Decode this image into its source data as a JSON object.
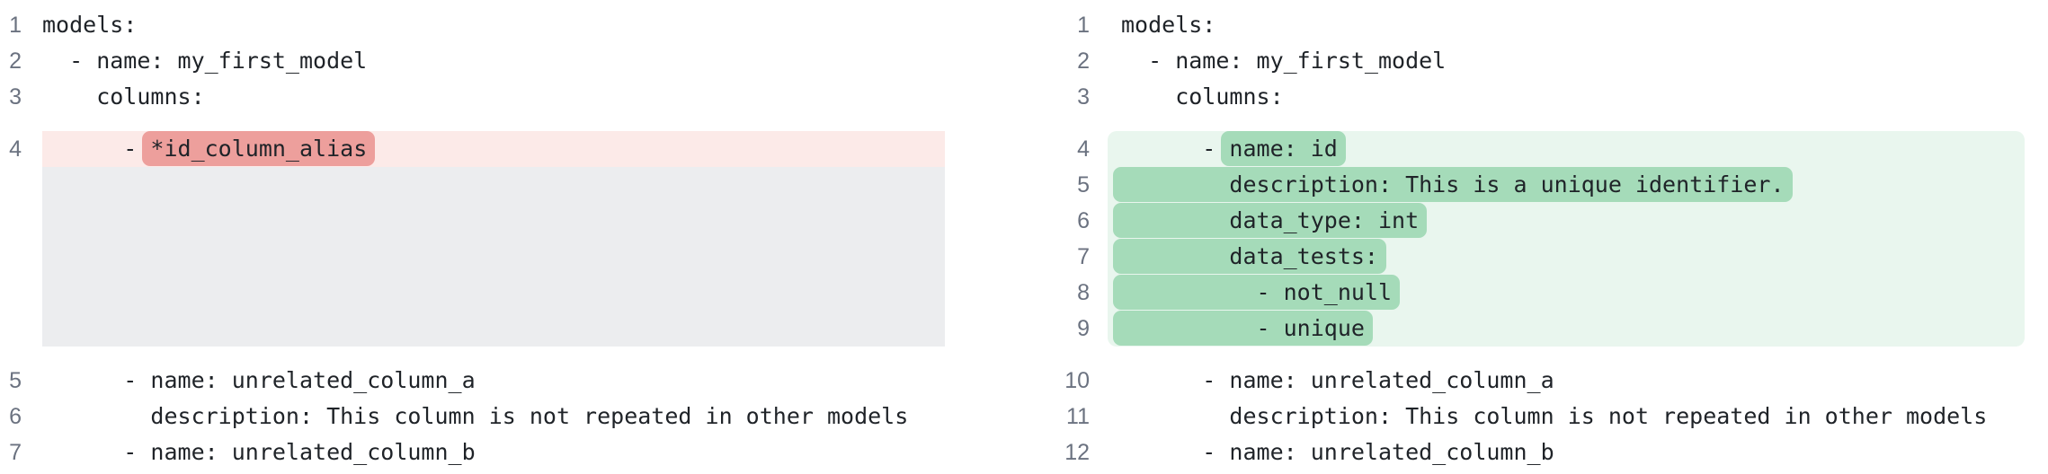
{
  "view": {
    "kind": "side-by-side-code-diff",
    "language": "yaml"
  },
  "colors": {
    "removed_line_bg": "#fceae8",
    "removed_token_bg": "#ed9f9c",
    "added_block_bg": "#e9f6ee",
    "added_token_bg": "#a5dbb9",
    "alignment_spacer_bg": "#ecedef",
    "gutter_text": "#6b7280",
    "code_text": "#1f2328",
    "background": "#ffffff"
  },
  "left": {
    "lines": [
      {
        "num": "1",
        "pre": "models:"
      },
      {
        "num": "2",
        "pre": "  - name: my_first_model"
      },
      {
        "num": "3",
        "pre": "    columns:"
      },
      {
        "num": "4",
        "pre": "      - ",
        "mark": "*id_column_alias"
      },
      {
        "num": "5",
        "pre": "      - name: unrelated_column_a"
      },
      {
        "num": "6",
        "pre": "        description: This column is not repeated in other models"
      },
      {
        "num": "7",
        "pre": "      - name: unrelated_column_b"
      }
    ]
  },
  "right": {
    "lines": [
      {
        "num": "1",
        "pre": "models:"
      },
      {
        "num": "2",
        "pre": "  - name: my_first_model"
      },
      {
        "num": "3",
        "pre": "    columns:"
      },
      {
        "num": "4",
        "pre": "      - ",
        "mark": "name: id"
      },
      {
        "num": "5",
        "mark": "        description: This is a unique identifier."
      },
      {
        "num": "6",
        "mark": "        data_type: int"
      },
      {
        "num": "7",
        "mark": "        data_tests:"
      },
      {
        "num": "8",
        "mark": "          - not_null"
      },
      {
        "num": "9",
        "mark": "          - unique"
      },
      {
        "num": "10",
        "pre": "      - name: unrelated_column_a"
      },
      {
        "num": "11",
        "pre": "        description: This column is not repeated in other models"
      },
      {
        "num": "12",
        "pre": "      - name: unrelated_column_b"
      }
    ]
  }
}
